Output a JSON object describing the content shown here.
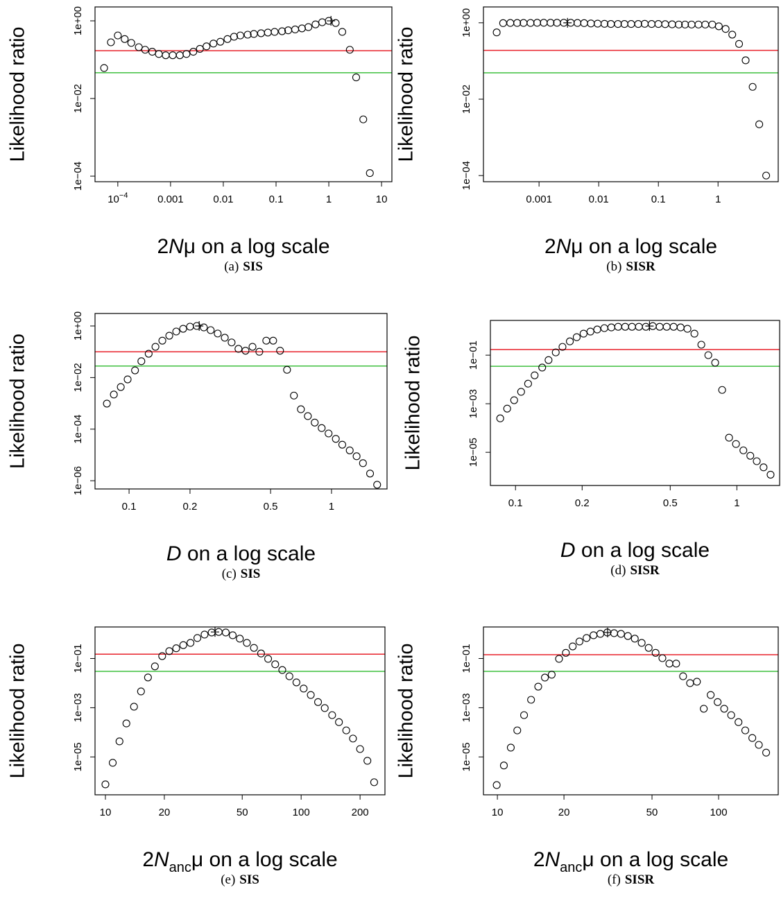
{
  "chart_data": [
    {
      "type": "scatter",
      "xlog": true,
      "ylog": true,
      "ylabel": "Likelihood ratio",
      "xlabel": [
        {
          "text": "2"
        },
        {
          "text": "N",
          "italic": true
        },
        {
          "text": "μ on a log scale"
        }
      ],
      "caption": {
        "label": "(a)",
        "name": "SIS"
      },
      "x": [
        5.5e-05,
        7.4e-05,
        0.0001,
        0.000135,
        0.00018,
        0.00025,
        0.00033,
        0.00045,
        0.0006,
        0.00081,
        0.0011,
        0.0015,
        0.002,
        0.0027,
        0.0036,
        0.0048,
        0.0065,
        0.0088,
        0.012,
        0.016,
        0.021,
        0.029,
        0.038,
        0.052,
        0.07,
        0.094,
        0.13,
        0.17,
        0.23,
        0.31,
        0.41,
        0.56,
        0.75,
        1.0,
        1.35,
        1.8,
        2.5,
        3.3,
        4.5,
        6.0
      ],
      "values": [
        0.061,
        0.28,
        0.42,
        0.34,
        0.27,
        0.21,
        0.18,
        0.16,
        0.14,
        0.13,
        0.13,
        0.13,
        0.14,
        0.16,
        0.19,
        0.22,
        0.26,
        0.29,
        0.34,
        0.39,
        0.42,
        0.44,
        0.46,
        0.48,
        0.5,
        0.52,
        0.54,
        0.57,
        0.6,
        0.64,
        0.69,
        0.81,
        0.92,
        1.0,
        0.88,
        0.52,
        0.18,
        0.035,
        0.0029,
        0.00012
      ],
      "mle": [
        1.1,
        1
      ],
      "xlim": [
        3.7e-05,
        15.7
      ],
      "ylim": [
        7.2e-05,
        2.28
      ],
      "xticks": [
        {
          "value": 0.0001,
          "label": "10",
          "exponent": "−4"
        },
        0.001,
        0.01,
        0.1,
        1,
        10
      ],
      "yticks": [
        {
          "value": 1,
          "label": "1e+00"
        },
        {
          "value": 0.01,
          "label": "1e−02"
        },
        {
          "value": 0.0001,
          "label": "1e−04"
        }
      ],
      "hlines": [
        {
          "value": 0.17,
          "color": "#e8202a"
        },
        {
          "value": 0.046,
          "color": "#3dbf3d"
        }
      ]
    },
    {
      "type": "scatter",
      "xlog": true,
      "ylog": true,
      "ylabel": "Likelihood ratio",
      "xlabel": [
        {
          "text": "2"
        },
        {
          "text": "N",
          "italic": true
        },
        {
          "text": "μ on a log scale"
        }
      ],
      "caption": {
        "label": "(b)",
        "name": "SISR"
      },
      "x": [
        0.000195,
        0.00025,
        0.00033,
        0.00043,
        0.00055,
        0.00072,
        0.00093,
        0.0012,
        0.00156,
        0.002,
        0.0026,
        0.0034,
        0.0044,
        0.0057,
        0.0074,
        0.0096,
        0.0125,
        0.016,
        0.021,
        0.027,
        0.035,
        0.046,
        0.059,
        0.077,
        0.1,
        0.13,
        0.17,
        0.22,
        0.28,
        0.36,
        0.47,
        0.61,
        0.8,
        1.03,
        1.34,
        1.73,
        2.25,
        2.9,
        3.8,
        4.9,
        6.4
      ],
      "values": [
        0.56,
        0.98,
        0.99,
        0.99,
        0.99,
        0.99,
        1.0,
        1.0,
        1.0,
        1.0,
        1.0,
        1.0,
        0.99,
        0.98,
        0.96,
        0.95,
        0.94,
        0.93,
        0.93,
        0.93,
        0.93,
        0.93,
        0.94,
        0.93,
        0.93,
        0.92,
        0.91,
        0.9,
        0.9,
        0.9,
        0.9,
        0.9,
        0.9,
        0.81,
        0.69,
        0.49,
        0.28,
        0.104,
        0.021,
        0.0022,
        0.0001
      ],
      "mle": [
        0.003,
        1
      ],
      "xlim": [
        0.000117,
        10.2
      ],
      "ylim": [
        6.9e-05,
        2.6
      ],
      "xticks": [
        0.001,
        0.01,
        0.1,
        1
      ],
      "yticks": [
        {
          "value": 1,
          "label": "1e+00"
        },
        {
          "value": 0.01,
          "label": "1e−02"
        },
        {
          "value": 0.0001,
          "label": "1e−04"
        }
      ],
      "hlines": [
        {
          "value": 0.19,
          "color": "#e8202a"
        },
        {
          "value": 0.049,
          "color": "#3dbf3d"
        }
      ]
    },
    {
      "type": "scatter",
      "xlog": true,
      "ylog": true,
      "ylabel": "Likelihood ratio",
      "xlabel": [
        {
          "text": "D",
          "italic": true
        },
        {
          "text": " on a log scale"
        }
      ],
      "caption": {
        "label": "(c)",
        "name": "SIS"
      },
      "x": [
        0.0777,
        0.0841,
        0.091,
        0.0984,
        0.107,
        0.115,
        0.125,
        0.135,
        0.146,
        0.158,
        0.171,
        0.185,
        0.2,
        0.216,
        0.234,
        0.253,
        0.274,
        0.297,
        0.321,
        0.347,
        0.376,
        0.407,
        0.44,
        0.476,
        0.515,
        0.557,
        0.603,
        0.652,
        0.706,
        0.764,
        0.826,
        0.894,
        0.967,
        1.05,
        1.13,
        1.23,
        1.33,
        1.43,
        1.55,
        1.68
      ],
      "values": [
        0.00098,
        0.0022,
        0.0043,
        0.0085,
        0.019,
        0.043,
        0.084,
        0.156,
        0.27,
        0.42,
        0.61,
        0.78,
        0.94,
        1.0,
        0.88,
        0.69,
        0.51,
        0.35,
        0.23,
        0.13,
        0.11,
        0.156,
        0.1,
        0.27,
        0.27,
        0.11,
        0.02,
        0.002,
        0.00059,
        0.00032,
        0.00018,
        0.00011,
        6.8e-05,
        4.2e-05,
        2.5e-05,
        1.5e-05,
        8.9e-06,
        4.8e-06,
        1.9e-06,
        7e-07
      ],
      "mle": [
        0.222,
        1
      ],
      "xlim": [
        0.0679,
        1.88
      ],
      "ylim": [
        4.8e-07,
        3.05
      ],
      "xticks": [
        0.1,
        0.2,
        0.5,
        1
      ],
      "yticks": [
        {
          "value": 1,
          "label": "1e+00"
        },
        {
          "value": 0.01,
          "label": "1e−02"
        },
        {
          "value": 0.0001,
          "label": "1e−04"
        },
        {
          "value": 1e-06,
          "label": "1e−06"
        }
      ],
      "hlines": [
        {
          "value": 0.1,
          "color": "#e8202a"
        },
        {
          "value": 0.028,
          "color": "#3dbf3d"
        }
      ]
    },
    {
      "type": "scatter",
      "xlog": true,
      "ylog": true,
      "ylabel": "Likelihood ratio",
      "xlabel": [
        {
          "text": "D",
          "italic": true
        },
        {
          "text": " on a log scale"
        }
      ],
      "caption": {
        "label": "(d)",
        "name": "SISR"
      },
      "x": [
        0.0853,
        0.0917,
        0.0986,
        0.106,
        0.114,
        0.122,
        0.132,
        0.141,
        0.152,
        0.163,
        0.176,
        0.189,
        0.203,
        0.218,
        0.234,
        0.252,
        0.271,
        0.291,
        0.313,
        0.336,
        0.361,
        0.388,
        0.417,
        0.448,
        0.482,
        0.518,
        0.557,
        0.598,
        0.643,
        0.691,
        0.743,
        0.798,
        0.858,
        0.922,
        0.991,
        1.07,
        1.15,
        1.23,
        1.32,
        1.42
      ],
      "values": [
        0.00025,
        0.00063,
        0.0014,
        0.0031,
        0.0067,
        0.0148,
        0.031,
        0.063,
        0.13,
        0.22,
        0.37,
        0.55,
        0.77,
        0.94,
        1.14,
        1.3,
        1.39,
        1.48,
        1.48,
        1.48,
        1.48,
        1.48,
        1.58,
        1.48,
        1.48,
        1.48,
        1.39,
        1.22,
        0.77,
        0.27,
        0.1,
        0.049,
        0.0037,
        4e-05,
        2.2e-05,
        1.2e-05,
        7.2e-06,
        4.3e-06,
        2.4e-06,
        1.2e-06
      ],
      "mle": [
        0.403,
        1.58
      ],
      "xlim": [
        0.077,
        1.56
      ],
      "ylim": [
        4.3e-07,
        2.7
      ],
      "xticks": [
        0.1,
        0.2,
        0.5,
        1
      ],
      "yticks": [
        {
          "value": 0.1,
          "label": "1e−01"
        },
        {
          "value": 0.001,
          "label": "1e−03"
        },
        {
          "value": 1e-05,
          "label": "1e−05"
        }
      ],
      "hlines": [
        {
          "value": 0.17,
          "color": "#e8202a"
        },
        {
          "value": 0.035,
          "color": "#3dbf3d"
        }
      ]
    },
    {
      "type": "scatter",
      "xlog": true,
      "ylog": true,
      "ylabel": "Likelihood ratio",
      "xlabel": [
        {
          "text": "2"
        },
        {
          "text": "N",
          "italic": true
        },
        {
          "text": "anc",
          "sub": true
        },
        {
          "text": "μ on a log scale"
        }
      ],
      "caption": {
        "label": "(e)",
        "name": "SIS"
      },
      "x": [
        10,
        10.9,
        11.8,
        12.8,
        14,
        15.2,
        16.5,
        17.9,
        19.5,
        21.2,
        23,
        25,
        27.2,
        29.5,
        32.1,
        34.9,
        37.9,
        41.2,
        44.7,
        48.6,
        52.8,
        57.4,
        62.4,
        67.8,
        73.7,
        80.1,
        87.1,
        94.6,
        103,
        112,
        122,
        132,
        144,
        156,
        170,
        184,
        200,
        218,
        236
      ],
      "values": [
        7.7e-07,
        5.8e-06,
        4.3e-05,
        0.00023,
        0.0011,
        0.0046,
        0.017,
        0.048,
        0.125,
        0.2,
        0.26,
        0.35,
        0.43,
        0.68,
        0.94,
        1.14,
        1.2,
        1.14,
        0.88,
        0.64,
        0.43,
        0.27,
        0.16,
        0.097,
        0.058,
        0.034,
        0.019,
        0.0107,
        0.006,
        0.0033,
        0.0017,
        0.00097,
        0.0005,
        0.00026,
        0.00012,
        5.6e-05,
        2.1e-05,
        7e-06,
        9.4e-07
      ],
      "mle": [
        36.3,
        1.2
      ],
      "xlim": [
        8.85,
        268
      ],
      "ylim": [
        2.9e-07,
        1.91
      ],
      "xticks": [
        10,
        20,
        50,
        100,
        200
      ],
      "yticks": [
        {
          "value": 0.1,
          "label": "1e−01"
        },
        {
          "value": 0.001,
          "label": "1e−03"
        },
        {
          "value": 1e-05,
          "label": "1e−05"
        }
      ],
      "hlines": [
        {
          "value": 0.15,
          "color": "#e8202a"
        },
        {
          "value": 0.03,
          "color": "#3dbf3d"
        }
      ]
    },
    {
      "type": "scatter",
      "xlog": true,
      "ylog": true,
      "ylabel": "Likelihood ratio",
      "xlabel": [
        {
          "text": "2"
        },
        {
          "text": "N",
          "italic": true
        },
        {
          "text": "anc",
          "sub": true
        },
        {
          "text": "μ on a log scale"
        }
      ],
      "caption": {
        "label": "(f)",
        "name": "SISR"
      },
      "x": [
        9.93,
        10.7,
        11.5,
        12.3,
        13.2,
        14.2,
        15.3,
        16.4,
        17.6,
        19,
        20.4,
        21.9,
        23.5,
        25.3,
        27.2,
        29.2,
        31.4,
        33.7,
        36.2,
        38.9,
        41.8,
        44.9,
        48.3,
        51.9,
        55.7,
        59.9,
        64.3,
        69.1,
        74.3,
        79.8,
        85.7,
        92.1,
        99,
        106,
        114,
        123,
        132,
        142,
        152,
        164
      ],
      "values": [
        7.2e-07,
        4.5e-06,
        2.4e-05,
        0.00012,
        0.0005,
        0.0021,
        0.0072,
        0.0168,
        0.022,
        0.097,
        0.17,
        0.31,
        0.49,
        0.68,
        0.88,
        1.0,
        1.14,
        1.07,
        1.0,
        0.82,
        0.64,
        0.43,
        0.27,
        0.17,
        0.103,
        0.062,
        0.062,
        0.019,
        0.01,
        0.0114,
        0.00091,
        0.0033,
        0.0017,
        0.00091,
        0.0005,
        0.00026,
        0.00012,
        5.9e-05,
        3.1e-05,
        1.5e-05
      ],
      "mle": [
        31.5,
        1.14
      ],
      "xlim": [
        8.65,
        186
      ],
      "ylim": [
        2.9e-07,
        1.91
      ],
      "xticks": [
        10,
        20,
        50,
        100
      ],
      "yticks": [
        {
          "value": 0.1,
          "label": "1e−01"
        },
        {
          "value": 0.001,
          "label": "1e−03"
        },
        {
          "value": 1e-05,
          "label": "1e−05"
        }
      ],
      "hlines": [
        {
          "value": 0.143,
          "color": "#e8202a"
        },
        {
          "value": 0.03,
          "color": "#3dbf3d"
        }
      ]
    }
  ]
}
